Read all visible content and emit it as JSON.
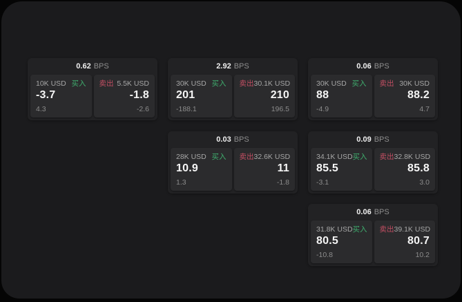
{
  "labels": {
    "buy": "买入",
    "sell": "卖出",
    "bps": "BPS"
  },
  "colors": {
    "outer_bg": "#050505",
    "panel_bg": "#1b1b1d",
    "card_bg": "#222224",
    "tile_bg": "#2b2b2d",
    "buy_green": "#3fae6e",
    "sell_red": "#c14e62",
    "text_primary": "#f5f5f5",
    "text_secondary": "#a6a6a6",
    "text_muted": "#8c8c8c"
  },
  "cards": [
    {
      "bps": "0.62",
      "buy": {
        "size": "10K USD",
        "price": "-3.7",
        "delta": "4.3"
      },
      "sell": {
        "size": "5.5K USD",
        "price": "-1.8",
        "delta": "-2.6"
      }
    },
    {
      "bps": "2.92",
      "buy": {
        "size": "30K USD",
        "price": "201",
        "delta": "-188.1"
      },
      "sell": {
        "size": "30.1K USD",
        "price": "210",
        "delta": "196.5"
      }
    },
    {
      "bps": "0.06",
      "buy": {
        "size": "30K USD",
        "price": "88",
        "delta": "-4.9"
      },
      "sell": {
        "size": "30K USD",
        "price": "88.2",
        "delta": "4.7"
      }
    },
    {
      "bps": "0.03",
      "buy": {
        "size": "28K USD",
        "price": "10.9",
        "delta": "1.3"
      },
      "sell": {
        "size": "32.6K USD",
        "price": "11",
        "delta": "-1.8"
      }
    },
    {
      "bps": "0.09",
      "buy": {
        "size": "34.1K USD",
        "price": "85.5",
        "delta": "-3.1"
      },
      "sell": {
        "size": "32.8K USD",
        "price": "85.8",
        "delta": "3.0"
      }
    },
    {
      "bps": "0.06",
      "buy": {
        "size": "31.8K USD",
        "price": "80.5",
        "delta": "-10.8"
      },
      "sell": {
        "size": "39.1K USD",
        "price": "80.7",
        "delta": "10.2"
      }
    }
  ]
}
